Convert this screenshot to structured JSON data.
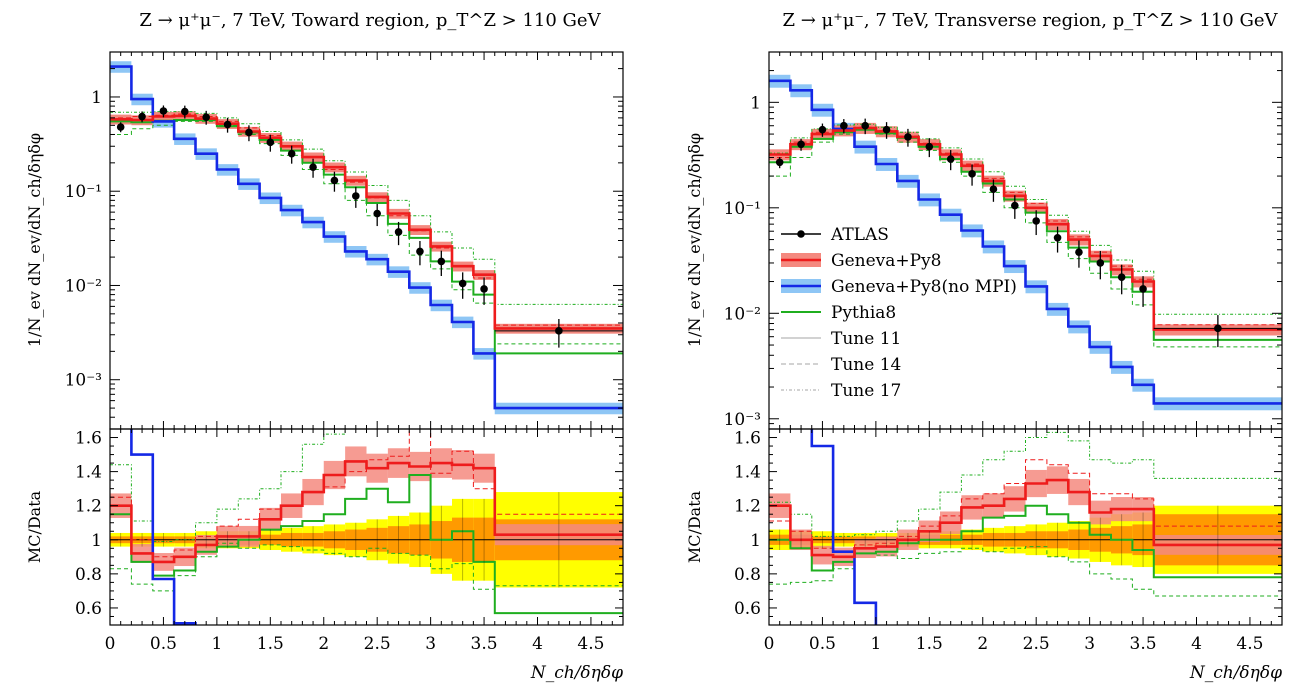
{
  "colors": {
    "atlas": "#000000",
    "geneva": "#ee1c1c",
    "geneva_band": "#f4897f",
    "geneva_nompi": "#1428e6",
    "geneva_nompi_band": "#8ec6f5",
    "pythia": "#1fae1f",
    "tune11": "#b8b8b8",
    "tune14": "#b8b8b8",
    "tune17": "#b8b8b8",
    "data_band_inner": "#ff9a00",
    "data_band_outer": "#ffff00"
  },
  "chart_data": [
    {
      "type": "line",
      "title": "Z → μ⁺μ⁻, 7 TeV, Toward region, p_T^Z > 110 GeV",
      "xlabel": "N_ch/δηδφ",
      "ylabel": "1/N_ev dN_ev/dN_ch/δηδφ",
      "ratio_ylabel": "MC/Data",
      "yscale": "log",
      "xlim": [
        0,
        4.8
      ],
      "ylim": [
        0.0003,
        3
      ],
      "ratio_ylim": [
        0.5,
        1.65
      ],
      "xticks": [
        "0",
        "0.5",
        "1",
        "1.5",
        "2",
        "2.5",
        "3",
        "3.5",
        "4",
        "4.5"
      ],
      "yticks": [
        "1",
        "10⁻¹",
        "10⁻²",
        "10⁻³"
      ],
      "ratio_yticks": [
        "0.6",
        "0.8",
        "1",
        "1.2",
        "1.4",
        "1.6"
      ],
      "bin_edges": [
        0,
        0.2,
        0.4,
        0.6,
        0.8,
        1.0,
        1.2,
        1.4,
        1.6,
        1.8,
        2.0,
        2.2,
        2.4,
        2.6,
        2.8,
        3.0,
        3.2,
        3.4,
        3.6,
        4.8
      ],
      "series": [
        {
          "name": "ATLAS",
          "type": "points",
          "x": [
            0.1,
            0.3,
            0.5,
            0.7,
            0.9,
            1.1,
            1.3,
            1.5,
            1.7,
            1.9,
            2.1,
            2.3,
            2.5,
            2.7,
            2.9,
            3.1,
            3.3,
            3.5,
            4.2
          ],
          "values": [
            0.48,
            0.62,
            0.71,
            0.7,
            0.61,
            0.51,
            0.42,
            0.33,
            0.25,
            0.18,
            0.13,
            0.089,
            0.058,
            0.037,
            0.023,
            0.018,
            0.0105,
            0.0092,
            0.0033
          ]
        },
        {
          "name": "Geneva+Py8",
          "values": [
            0.58,
            0.57,
            0.62,
            0.63,
            0.59,
            0.52,
            0.43,
            0.37,
            0.3,
            0.23,
            0.18,
            0.13,
            0.087,
            0.058,
            0.039,
            0.026,
            0.016,
            0.013,
            0.0035
          ]
        },
        {
          "name": "Geneva+Py8(no MPI)",
          "values": [
            2.1,
            0.95,
            0.55,
            0.36,
            0.25,
            0.17,
            0.12,
            0.085,
            0.063,
            0.047,
            0.033,
            0.023,
            0.019,
            0.014,
            0.0095,
            0.0062,
            0.0041,
            0.0019,
            0.0005
          ]
        },
        {
          "name": "Pythia8",
          "values": [
            0.55,
            0.54,
            0.56,
            0.57,
            0.57,
            0.49,
            0.42,
            0.35,
            0.27,
            0.2,
            0.15,
            0.11,
            0.075,
            0.045,
            0.032,
            0.018,
            0.011,
            0.008,
            0.0019
          ]
        },
        {
          "name": "Tune 11",
          "values": [
            0.6,
            0.62,
            0.64,
            0.66,
            0.62,
            0.55,
            0.47,
            0.39,
            0.3,
            0.23,
            0.17,
            0.125,
            0.085,
            0.055,
            0.038,
            0.025,
            0.016,
            0.012,
            0.0038
          ]
        },
        {
          "name": "Tune 14",
          "values": [
            0.4,
            0.46,
            0.5,
            0.55,
            0.55,
            0.5,
            0.4,
            0.32,
            0.24,
            0.17,
            0.12,
            0.08,
            0.055,
            0.034,
            0.021,
            0.015,
            0.009,
            0.0065,
            0.0024
          ]
        },
        {
          "name": "Tune 17",
          "values": [
            0.69,
            0.69,
            0.7,
            0.7,
            0.67,
            0.6,
            0.52,
            0.43,
            0.35,
            0.28,
            0.21,
            0.16,
            0.115,
            0.08,
            0.055,
            0.037,
            0.025,
            0.019,
            0.0063
          ]
        }
      ],
      "ratio": {
        "data_band_outer": [
          0.04,
          0.04,
          0.04,
          0.04,
          0.05,
          0.05,
          0.05,
          0.06,
          0.07,
          0.08,
          0.09,
          0.1,
          0.12,
          0.14,
          0.16,
          0.2,
          0.24,
          0.24,
          0.28
        ],
        "data_band_inner": [
          0.02,
          0.02,
          0.02,
          0.02,
          0.02,
          0.03,
          0.03,
          0.03,
          0.04,
          0.04,
          0.05,
          0.06,
          0.07,
          0.08,
          0.09,
          0.11,
          0.13,
          0.13,
          0.12
        ],
        "Geneva+Py8": [
          1.2,
          0.92,
          0.87,
          0.9,
          0.97,
          1.02,
          1.02,
          1.12,
          1.2,
          1.28,
          1.38,
          1.46,
          1.42,
          1.45,
          1.43,
          1.45,
          1.44,
          1.42,
          1.03
        ],
        "Geneva+Py8(no MPI)": [
          4.4,
          1.5,
          0.77,
          0.51,
          0.41,
          0.33,
          0.29,
          0.26,
          0.25,
          0.26,
          0.25,
          0.26,
          0.33,
          0.38,
          0.41,
          0.34,
          0.39,
          0.21,
          0.15
        ],
        "Pythia8": [
          1.15,
          0.87,
          0.79,
          0.82,
          0.93,
          0.96,
          1.0,
          1.06,
          1.08,
          1.11,
          1.15,
          1.24,
          1.3,
          1.22,
          1.38,
          1.0,
          1.05,
          0.87,
          0.57
        ],
        "Tune 11": [
          1.25,
          1.0,
          0.9,
          0.94,
          1.02,
          1.08,
          1.12,
          1.18,
          1.2,
          1.28,
          1.31,
          1.4,
          1.47,
          1.49,
          1.65,
          1.39,
          1.52,
          1.3,
          1.15
        ],
        "Tune 14": [
          0.83,
          0.74,
          0.7,
          0.79,
          0.9,
          0.98,
          0.95,
          0.97,
          0.96,
          0.94,
          0.92,
          0.9,
          0.95,
          0.92,
          0.91,
          0.83,
          0.86,
          0.71,
          0.73
        ],
        "Tune 17": [
          1.44,
          1.11,
          0.99,
          1.0,
          1.1,
          1.18,
          1.24,
          1.3,
          1.4,
          1.56,
          1.62,
          1.8,
          1.98,
          2.16,
          2.39,
          2.06,
          2.38,
          2.07,
          1.91
        ]
      }
    },
    {
      "type": "line",
      "title": "Z → μ⁺μ⁻, 7 TeV, Transverse region, p_T^Z > 110 GeV",
      "xlabel": "N_ch/δηδφ",
      "ylabel": "1/N_ev dN_ev/dN_ch/δηδφ",
      "ratio_ylabel": "MC/Data",
      "yscale": "log",
      "xlim": [
        0,
        4.8
      ],
      "ylim": [
        0.0008,
        3
      ],
      "ratio_ylim": [
        0.5,
        1.65
      ],
      "xticks": [
        "0",
        "0.5",
        "1",
        "1.5",
        "2",
        "2.5",
        "3",
        "3.5",
        "4",
        "4.5"
      ],
      "yticks": [
        "1",
        "10⁻¹",
        "10⁻²",
        "10⁻³"
      ],
      "ratio_yticks": [
        "0.6",
        "0.8",
        "1",
        "1.2",
        "1.4",
        "1.6"
      ],
      "bin_edges": [
        0,
        0.2,
        0.4,
        0.6,
        0.8,
        1.0,
        1.2,
        1.4,
        1.6,
        1.8,
        2.0,
        2.2,
        2.4,
        2.6,
        2.8,
        3.0,
        3.2,
        3.4,
        3.6,
        4.8
      ],
      "legend": {
        "position": "middle-left",
        "entries": [
          "ATLAS",
          "Geneva+Py8",
          "Geneva+Py8(no MPI)",
          "Pythia8",
          "Tune 11",
          "Tune 14",
          "Tune 17"
        ]
      },
      "series": [
        {
          "name": "ATLAS",
          "type": "points",
          "x": [
            0.1,
            0.3,
            0.5,
            0.7,
            0.9,
            1.1,
            1.3,
            1.5,
            1.7,
            1.9,
            2.1,
            2.3,
            2.5,
            2.7,
            2.9,
            3.1,
            3.3,
            3.5,
            4.2
          ],
          "values": [
            0.27,
            0.4,
            0.55,
            0.6,
            0.6,
            0.55,
            0.47,
            0.38,
            0.29,
            0.21,
            0.15,
            0.105,
            0.075,
            0.052,
            0.038,
            0.03,
            0.022,
            0.017,
            0.0072
          ]
        },
        {
          "name": "Geneva+Py8",
          "values": [
            0.32,
            0.4,
            0.5,
            0.54,
            0.57,
            0.53,
            0.47,
            0.4,
            0.32,
            0.25,
            0.18,
            0.13,
            0.1,
            0.07,
            0.05,
            0.035,
            0.026,
            0.02,
            0.007
          ]
        },
        {
          "name": "Geneva+Py8(no MPI)",
          "values": [
            1.6,
            1.3,
            0.85,
            0.56,
            0.38,
            0.26,
            0.18,
            0.12,
            0.086,
            0.061,
            0.043,
            0.028,
            0.018,
            0.011,
            0.0075,
            0.0048,
            0.0031,
            0.0021,
            0.0014
          ]
        },
        {
          "name": "Pythia8",
          "values": [
            0.27,
            0.38,
            0.45,
            0.52,
            0.55,
            0.51,
            0.46,
            0.38,
            0.29,
            0.22,
            0.17,
            0.12,
            0.09,
            0.06,
            0.042,
            0.031,
            0.022,
            0.016,
            0.0056
          ]
        },
        {
          "name": "Tune 11",
          "values": [
            0.3,
            0.42,
            0.52,
            0.56,
            0.58,
            0.54,
            0.48,
            0.41,
            0.33,
            0.26,
            0.19,
            0.14,
            0.11,
            0.075,
            0.053,
            0.038,
            0.028,
            0.021,
            0.0078
          ]
        },
        {
          "name": "Tune 14",
          "values": [
            0.2,
            0.3,
            0.42,
            0.5,
            0.55,
            0.5,
            0.42,
            0.35,
            0.27,
            0.2,
            0.14,
            0.1,
            0.072,
            0.047,
            0.033,
            0.024,
            0.017,
            0.012,
            0.0048
          ]
        },
        {
          "name": "Tune 17",
          "values": [
            0.33,
            0.46,
            0.56,
            0.61,
            0.62,
            0.58,
            0.52,
            0.45,
            0.37,
            0.29,
            0.22,
            0.16,
            0.12,
            0.085,
            0.06,
            0.044,
            0.032,
            0.025,
            0.0098
          ]
        }
      ],
      "ratio": {
        "data_band_outer": [
          0.06,
          0.05,
          0.05,
          0.04,
          0.04,
          0.04,
          0.04,
          0.05,
          0.05,
          0.06,
          0.07,
          0.08,
          0.09,
          0.1,
          0.11,
          0.13,
          0.15,
          0.16,
          0.2
        ],
        "data_band_inner": [
          0.03,
          0.03,
          0.02,
          0.02,
          0.02,
          0.02,
          0.02,
          0.03,
          0.03,
          0.03,
          0.04,
          0.04,
          0.05,
          0.05,
          0.06,
          0.07,
          0.08,
          0.09,
          0.15
        ],
        "Geneva+Py8": [
          1.2,
          1.0,
          0.91,
          0.9,
          0.95,
          0.96,
          1.0,
          1.05,
          1.1,
          1.19,
          1.2,
          1.24,
          1.33,
          1.35,
          1.28,
          1.16,
          1.18,
          1.18,
          0.97
        ],
        "Geneva+Py8(no MPI)": [
          5.9,
          3.25,
          1.55,
          0.93,
          0.63,
          0.47,
          0.38,
          0.32,
          0.3,
          0.29,
          0.29,
          0.27,
          0.24,
          0.21,
          0.2,
          0.16,
          0.14,
          0.12,
          0.19
        ],
        "Pythia8": [
          1.0,
          0.95,
          0.82,
          0.87,
          0.92,
          0.93,
          0.98,
          1.0,
          1.0,
          1.05,
          1.13,
          1.14,
          1.2,
          1.15,
          1.1,
          1.03,
          1.0,
          0.94,
          0.78
        ],
        "Tune 11": [
          1.11,
          1.05,
          0.95,
          0.93,
          0.97,
          0.98,
          1.02,
          1.08,
          1.14,
          1.24,
          1.27,
          1.33,
          1.47,
          1.44,
          1.39,
          1.27,
          1.27,
          1.24,
          1.08
        ],
        "Tune 14": [
          0.74,
          0.75,
          0.76,
          0.83,
          0.92,
          0.91,
          0.89,
          0.92,
          0.93,
          0.95,
          0.93,
          0.95,
          0.96,
          0.9,
          0.87,
          0.8,
          0.77,
          0.71,
          0.67
        ],
        "Tune 17": [
          1.22,
          1.15,
          1.02,
          1.02,
          1.03,
          1.05,
          1.11,
          1.18,
          1.28,
          1.38,
          1.47,
          1.52,
          1.6,
          1.63,
          1.58,
          1.47,
          1.45,
          1.47,
          1.36
        ]
      }
    }
  ]
}
